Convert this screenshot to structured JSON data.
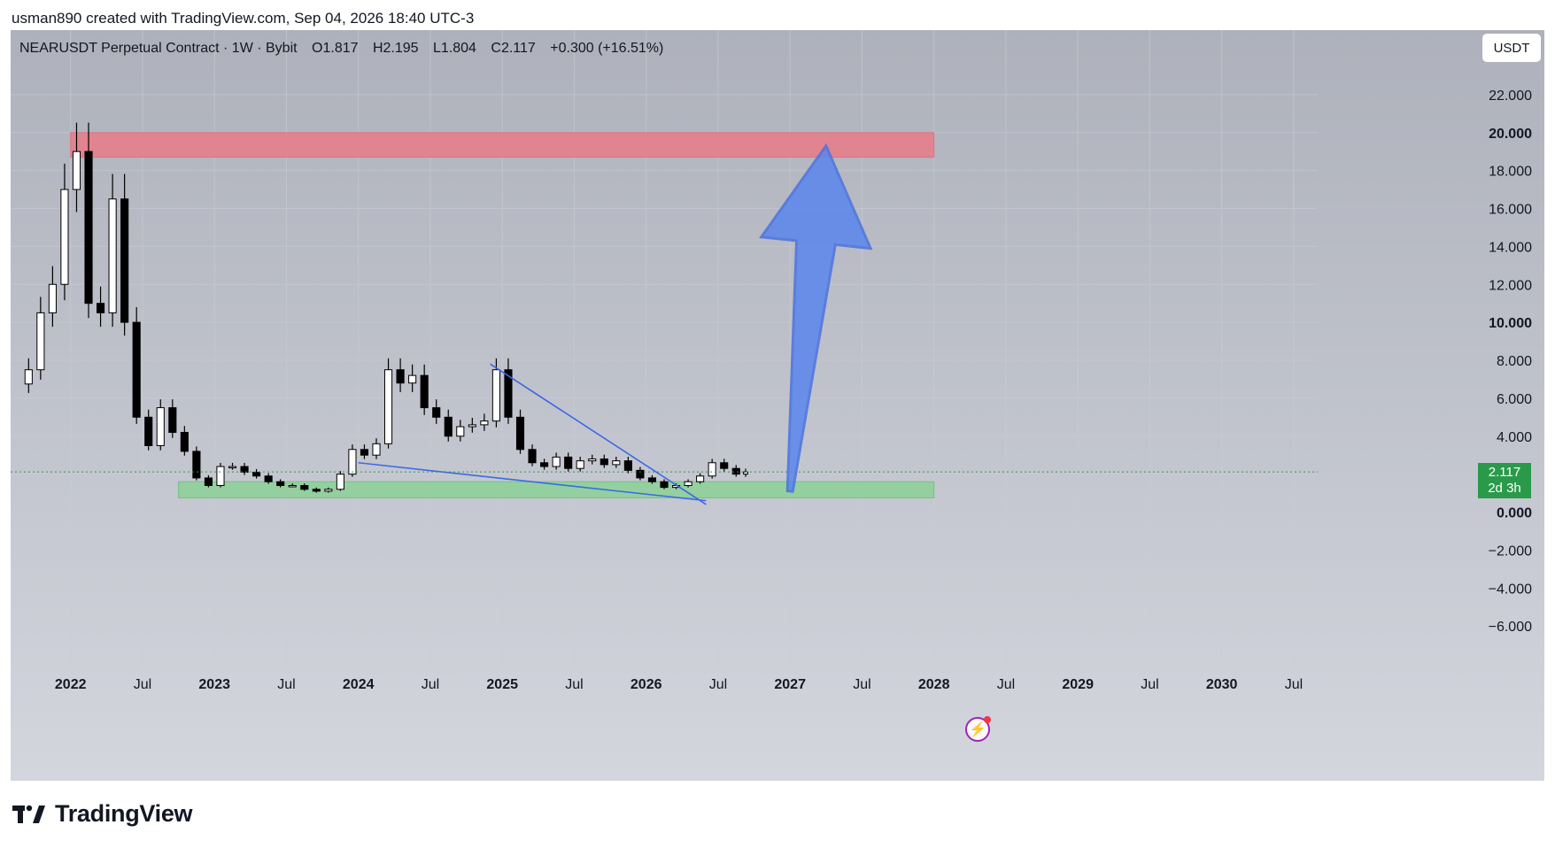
{
  "header": {
    "created_by": "usman890 created with TradingView.com, Sep 04, 2026 18:40 UTC-3"
  },
  "legend": {
    "symbol": "NEARUSDT Perpetual Contract · 1W · Bybit",
    "open": "O1.817",
    "high": "H2.195",
    "low": "L1.804",
    "close": "C2.117",
    "change": "+0.300 (+16.51%)"
  },
  "currency_button": "USDT",
  "price_badge": {
    "price": "2.117",
    "countdown": "2d 3h"
  },
  "footer": {
    "brand": "TradingView"
  },
  "colors": {
    "background_top": "#aeb1bb",
    "candle": "#000000",
    "resistance_zone": "#e57f8a",
    "support_zone": "#8fd19a",
    "arrow": "#5b86ee",
    "trendline": "#3d68e8",
    "price_badge": "#2a9a4a"
  },
  "chart_data": {
    "type": "candlestick",
    "symbol": "NEARUSDT",
    "interval": "1W",
    "ylim": [
      -8,
      24
    ],
    "y_ticks": [
      "22.000",
      "20.000",
      "18.000",
      "16.000",
      "14.000",
      "12.000",
      "10.000",
      "8.000",
      "6.000",
      "4.000",
      "0.000",
      "−2.000",
      "−4.000",
      "−6.000"
    ],
    "bold_y_ticks": [
      "20.000",
      "10.000",
      "0.000"
    ],
    "x_ticks": [
      "2022",
      "Jul",
      "2023",
      "Jul",
      "2024",
      "Jul",
      "2025",
      "Jul",
      "2026",
      "Jul",
      "2027",
      "Jul",
      "2028",
      "Jul",
      "2029",
      "Jul",
      "2030",
      "Jul"
    ],
    "xlim": [
      "2021-08",
      "2030-09"
    ],
    "last_price": 2.117,
    "close_series": [
      {
        "t": "2021-09",
        "v": 7.5
      },
      {
        "t": "2021-10",
        "v": 10.5
      },
      {
        "t": "2021-11",
        "v": 12.0
      },
      {
        "t": "2021-12",
        "v": 17.0
      },
      {
        "t": "2022-01",
        "v": 19.0
      },
      {
        "t": "2022-02",
        "v": 11.0
      },
      {
        "t": "2022-03",
        "v": 10.5
      },
      {
        "t": "2022-04",
        "v": 16.5
      },
      {
        "t": "2022-05",
        "v": 10.0
      },
      {
        "t": "2022-06",
        "v": 5.0
      },
      {
        "t": "2022-07",
        "v": 3.5
      },
      {
        "t": "2022-08",
        "v": 5.5
      },
      {
        "t": "2022-09",
        "v": 4.2
      },
      {
        "t": "2022-10",
        "v": 3.2
      },
      {
        "t": "2022-11",
        "v": 1.8
      },
      {
        "t": "2022-12",
        "v": 1.4
      },
      {
        "t": "2023-01",
        "v": 2.4
      },
      {
        "t": "2023-02",
        "v": 2.4
      },
      {
        "t": "2023-03",
        "v": 2.1
      },
      {
        "t": "2023-04",
        "v": 1.9
      },
      {
        "t": "2023-05",
        "v": 1.6
      },
      {
        "t": "2023-06",
        "v": 1.4
      },
      {
        "t": "2023-07",
        "v": 1.4
      },
      {
        "t": "2023-08",
        "v": 1.2
      },
      {
        "t": "2023-09",
        "v": 1.1
      },
      {
        "t": "2023-10",
        "v": 1.2
      },
      {
        "t": "2023-11",
        "v": 2.0
      },
      {
        "t": "2023-12",
        "v": 3.3
      },
      {
        "t": "2024-01",
        "v": 3.0
      },
      {
        "t": "2024-02",
        "v": 3.6
      },
      {
        "t": "2024-03",
        "v": 7.5
      },
      {
        "t": "2024-04",
        "v": 6.8
      },
      {
        "t": "2024-05",
        "v": 7.2
      },
      {
        "t": "2024-06",
        "v": 5.5
      },
      {
        "t": "2024-07",
        "v": 5.0
      },
      {
        "t": "2024-08",
        "v": 4.0
      },
      {
        "t": "2024-09",
        "v": 4.5
      },
      {
        "t": "2024-10",
        "v": 4.6
      },
      {
        "t": "2024-11",
        "v": 4.8
      },
      {
        "t": "2024-12",
        "v": 7.5
      },
      {
        "t": "2025-01",
        "v": 5.0
      },
      {
        "t": "2025-02",
        "v": 3.3
      },
      {
        "t": "2025-03",
        "v": 2.6
      },
      {
        "t": "2025-04",
        "v": 2.4
      },
      {
        "t": "2025-05",
        "v": 2.9
      },
      {
        "t": "2025-06",
        "v": 2.3
      },
      {
        "t": "2025-07",
        "v": 2.7
      },
      {
        "t": "2025-08",
        "v": 2.8
      },
      {
        "t": "2025-09",
        "v": 2.5
      },
      {
        "t": "2025-10",
        "v": 2.7
      },
      {
        "t": "2025-11",
        "v": 2.2
      },
      {
        "t": "2025-12",
        "v": 1.8
      },
      {
        "t": "2026-01",
        "v": 1.6
      },
      {
        "t": "2026-02",
        "v": 1.3
      },
      {
        "t": "2026-03",
        "v": 1.4
      },
      {
        "t": "2026-04",
        "v": 1.6
      },
      {
        "t": "2026-05",
        "v": 1.9
      },
      {
        "t": "2026-06",
        "v": 2.6
      },
      {
        "t": "2026-07",
        "v": 2.3
      },
      {
        "t": "2026-08",
        "v": 2.0
      },
      {
        "t": "2026-09",
        "v": 2.117
      }
    ],
    "zones": [
      {
        "kind": "resistance",
        "from": "2022-01",
        "to": "2028-01",
        "y_low": 18.7,
        "y_high": 20.0
      },
      {
        "kind": "support",
        "from": "2022-10",
        "to": "2028-01",
        "y_low": 0.75,
        "y_high": 1.6
      }
    ],
    "trendlines": [
      {
        "from_t": "2024-12",
        "from_y": 7.8,
        "to_t": "2026-06",
        "to_y": 0.4
      },
      {
        "from_t": "2024-01",
        "from_y": 2.6,
        "to_t": "2026-06",
        "to_y": 0.6
      }
    ],
    "arrow": {
      "from_t": "2027-01",
      "from_y": 1.1,
      "to_t": "2027-04",
      "to_y": 19.3
    }
  }
}
